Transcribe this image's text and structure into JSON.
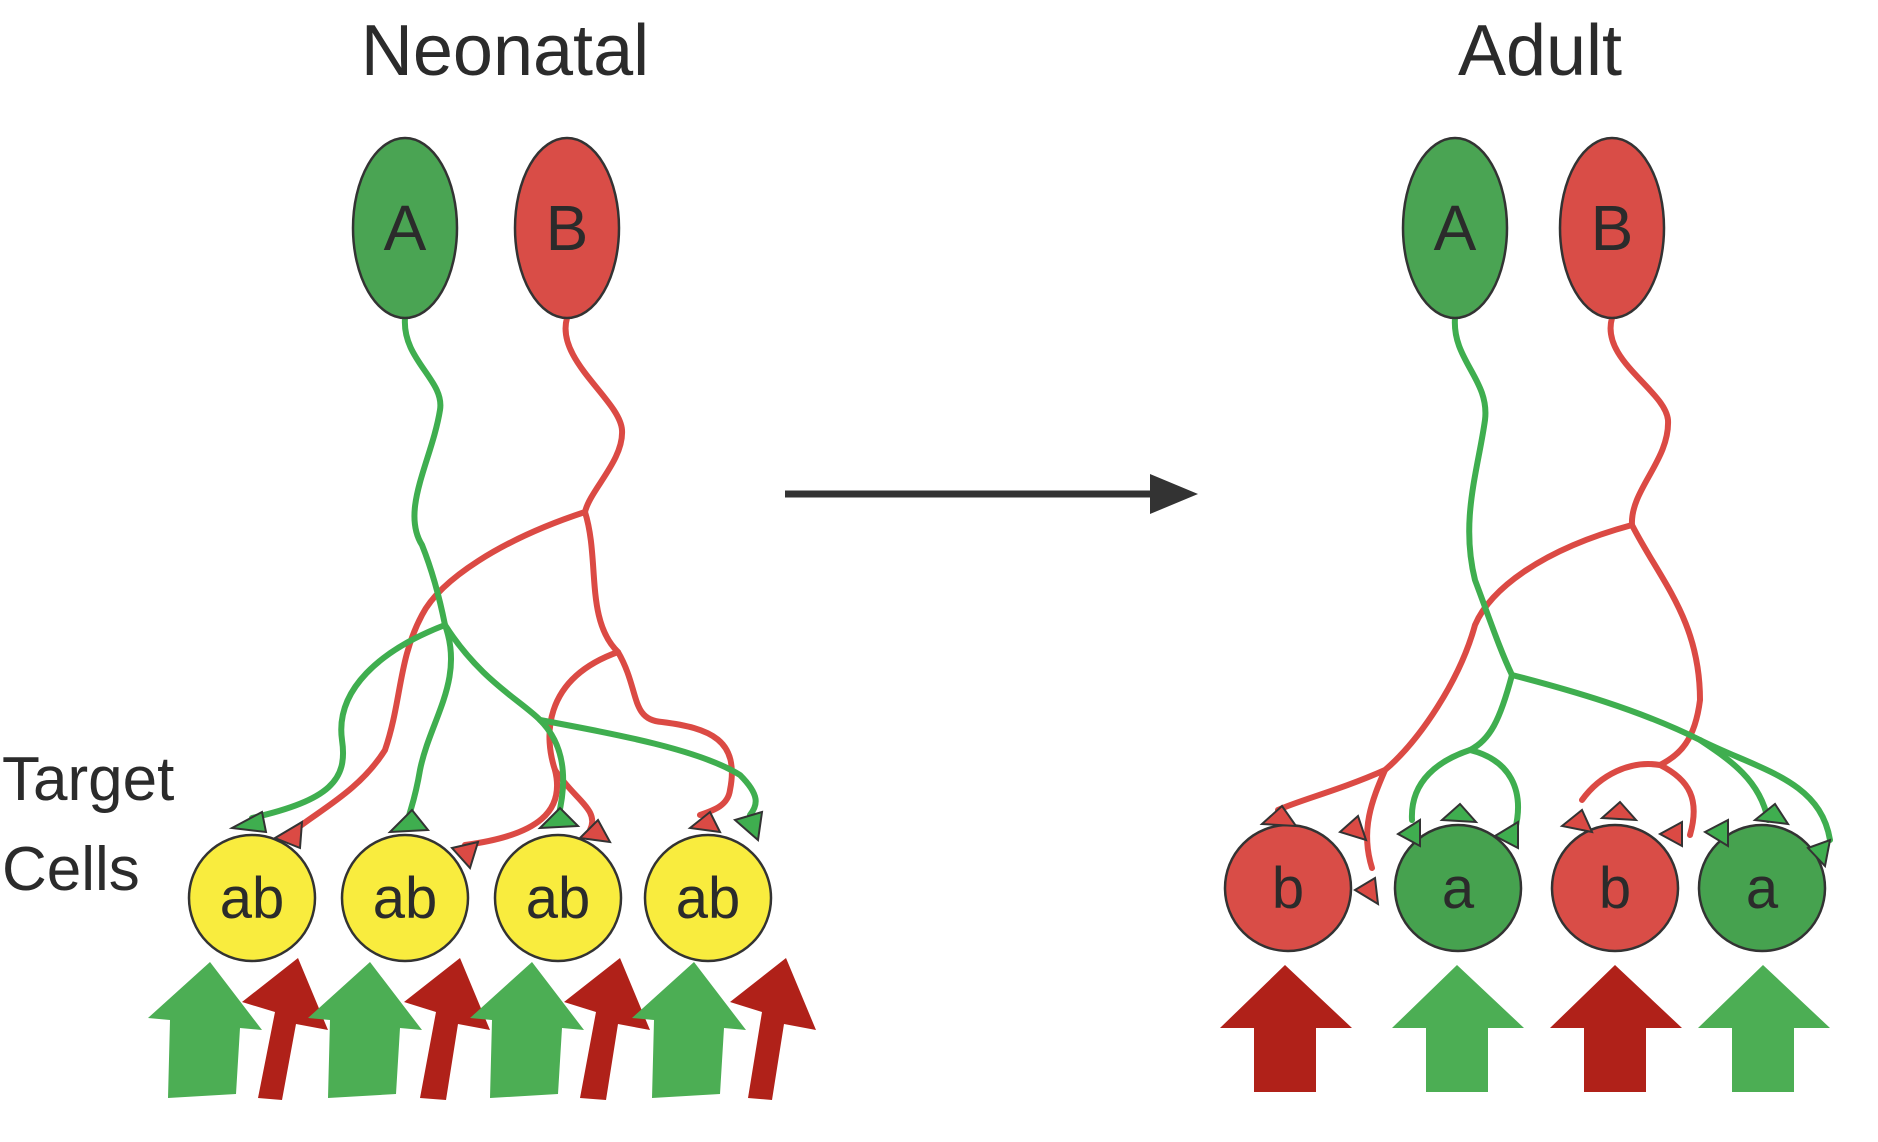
{
  "titles": {
    "neonatal": "Neonatal",
    "adult": "Adult"
  },
  "side_label": {
    "line1": "Target",
    "line2": "Cells"
  },
  "neurons": [
    {
      "label": "A",
      "color": "#4aa453"
    },
    {
      "label": "B",
      "color": "#d94d47"
    }
  ],
  "neonatal_cells": [
    {
      "label": "ab"
    },
    {
      "label": "ab"
    },
    {
      "label": "ab"
    },
    {
      "label": "ab"
    }
  ],
  "adult_cells": [
    {
      "label": "b"
    },
    {
      "label": "a"
    },
    {
      "label": "b"
    },
    {
      "label": "a"
    }
  ],
  "colors": {
    "green_axon": "#3fae4f",
    "red_axon": "#db4a44",
    "neonatal_cell": "#f9ec3e",
    "adult_green_cell": "#46a24f",
    "adult_red_cell": "#d94d47",
    "green_arrow": "#4cae54",
    "red_arrow": "#b02119",
    "transition_arrow": "#333333"
  }
}
